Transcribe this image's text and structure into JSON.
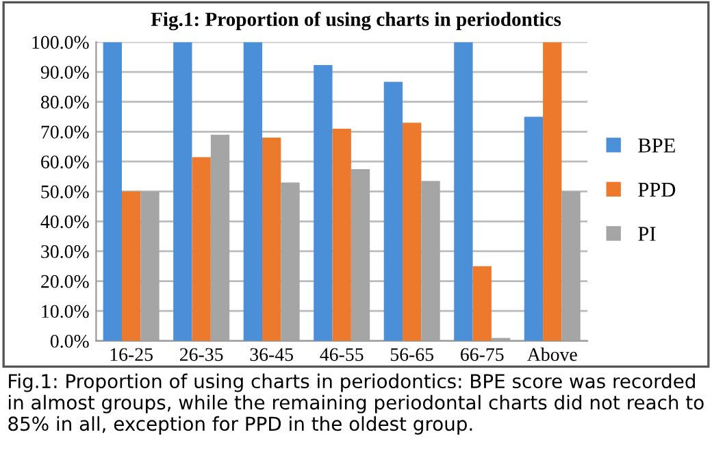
{
  "chart_data": {
    "type": "bar",
    "title": "Fig.1: Proportion of using charts in periodontics",
    "categories": [
      "16-25",
      "26-35",
      "36-45",
      "46-55",
      "56-65",
      "66-75",
      "Above"
    ],
    "series": [
      {
        "name": "BPE",
        "color": "#4a8fd8",
        "values": [
          100,
          100,
          100,
          92.3,
          86.7,
          100,
          75
        ]
      },
      {
        "name": "PPD",
        "color": "#ed7a2c",
        "values": [
          50,
          61.5,
          68,
          71,
          73,
          25,
          100
        ]
      },
      {
        "name": "PI",
        "color": "#a5a5a5",
        "values": [
          50,
          69,
          53,
          57.5,
          53.5,
          1,
          50
        ]
      }
    ],
    "ylim": [
      0,
      100
    ],
    "yticks": [
      {
        "value": 0,
        "label": "0.0%"
      },
      {
        "value": 10,
        "label": "10.0%"
      },
      {
        "value": 20,
        "label": "20.0%"
      },
      {
        "value": 30,
        "label": "30.0%"
      },
      {
        "value": 40,
        "label": "40.0%"
      },
      {
        "value": 50,
        "label": "50.0%"
      },
      {
        "value": 60,
        "label": "60.0%"
      },
      {
        "value": 70,
        "label": "70.0%"
      },
      {
        "value": 80,
        "label": "80.0%"
      },
      {
        "value": 90,
        "label": "90.0%"
      },
      {
        "value": 100,
        "label": "100.0%"
      }
    ],
    "grid": "y",
    "legend": "right",
    "annotations": [
      "Fig.1: Proportion of using charts in periodontics: BPE score was recorded in almost groups, while the remaining periodontal charts did not reach to 85% in all, exception for PPD in the oldest group."
    ]
  }
}
